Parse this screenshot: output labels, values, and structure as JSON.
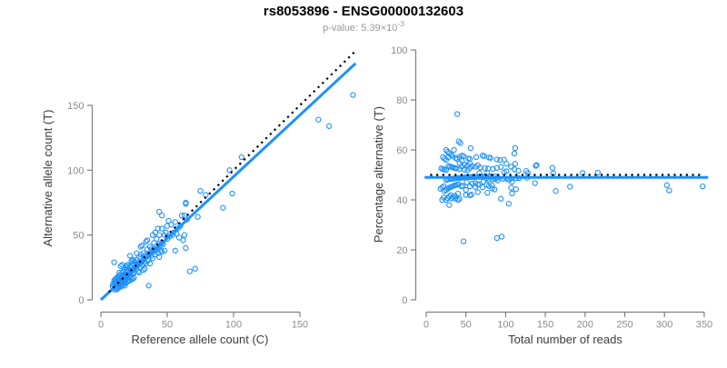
{
  "header": {
    "title": "rs8053896 - ENSG00000132603",
    "subtitle_prefix": "p-value: 5.39",
    "subtitle_times": "×10",
    "subtitle_exponent": "-3"
  },
  "colors": {
    "points": "#1E90FF",
    "fit_line": "#1E90FF",
    "reference_line": "#000000",
    "axis": "#808080",
    "tick_text": "#8c8c8c",
    "axis_title_text": "#3c3c3c"
  },
  "chart_data": [
    {
      "type": "scatter",
      "title": "",
      "xlabel": "Reference allele count (C)",
      "ylabel": "Alternative allele count (T)",
      "xticks": [
        0,
        50,
        100,
        150
      ],
      "yticks": [
        0,
        50,
        100,
        150
      ],
      "xlim": [
        0,
        195
      ],
      "ylim": [
        0,
        195
      ],
      "grid": false,
      "legend": "none",
      "points_ct": [
        [
          9,
          10
        ],
        [
          9,
          12
        ],
        [
          10,
          8
        ],
        [
          10,
          11
        ],
        [
          10,
          13
        ],
        [
          10,
          15
        ],
        [
          10,
          29
        ],
        [
          11,
          9
        ],
        [
          11,
          12
        ],
        [
          11,
          14
        ],
        [
          11,
          16
        ],
        [
          12,
          8
        ],
        [
          12,
          10
        ],
        [
          12,
          13
        ],
        [
          12,
          16
        ],
        [
          12,
          17
        ],
        [
          13,
          9
        ],
        [
          13,
          10
        ],
        [
          13,
          12
        ],
        [
          13,
          15
        ],
        [
          13,
          18
        ],
        [
          14,
          11
        ],
        [
          14,
          13
        ],
        [
          14,
          16
        ],
        [
          14,
          19
        ],
        [
          14,
          21
        ],
        [
          15,
          10
        ],
        [
          15,
          12
        ],
        [
          15,
          14
        ],
        [
          15,
          17
        ],
        [
          15,
          26
        ],
        [
          16,
          11
        ],
        [
          16,
          13
        ],
        [
          16,
          15
        ],
        [
          16,
          18
        ],
        [
          16,
          21
        ],
        [
          16,
          27
        ],
        [
          17,
          12
        ],
        [
          17,
          14
        ],
        [
          17,
          16
        ],
        [
          17,
          19
        ],
        [
          17,
          22
        ],
        [
          18,
          11
        ],
        [
          18,
          13
        ],
        [
          18,
          15
        ],
        [
          18,
          17
        ],
        [
          18,
          20
        ],
        [
          18,
          24
        ],
        [
          19,
          13
        ],
        [
          19,
          16
        ],
        [
          19,
          18
        ],
        [
          19,
          23
        ],
        [
          19,
          26
        ],
        [
          20,
          14
        ],
        [
          20,
          17
        ],
        [
          20,
          19
        ],
        [
          20,
          22
        ],
        [
          20,
          25
        ],
        [
          20,
          27
        ],
        [
          21,
          15
        ],
        [
          21,
          18
        ],
        [
          21,
          20
        ],
        [
          21,
          24
        ],
        [
          22,
          15
        ],
        [
          22,
          19
        ],
        [
          22,
          21
        ],
        [
          22,
          26
        ],
        [
          22,
          34
        ],
        [
          23,
          17
        ],
        [
          23,
          22
        ],
        [
          23,
          25
        ],
        [
          23,
          30
        ],
        [
          24,
          16
        ],
        [
          24,
          20
        ],
        [
          24,
          23
        ],
        [
          24,
          28
        ],
        [
          24,
          31
        ],
        [
          25,
          17
        ],
        [
          25,
          21
        ],
        [
          25,
          24
        ],
        [
          25,
          27
        ],
        [
          25,
          30
        ],
        [
          26,
          25
        ],
        [
          26,
          29
        ],
        [
          27,
          24
        ],
        [
          27,
          31
        ],
        [
          27,
          36
        ],
        [
          28,
          22
        ],
        [
          28,
          27
        ],
        [
          29,
          21
        ],
        [
          29,
          28
        ],
        [
          29,
          33
        ],
        [
          30,
          25
        ],
        [
          30,
          29
        ],
        [
          30,
          35
        ],
        [
          30,
          41
        ],
        [
          31,
          27
        ],
        [
          31,
          30
        ],
        [
          31,
          42
        ],
        [
          32,
          23
        ],
        [
          32,
          31
        ],
        [
          32,
          36
        ],
        [
          33,
          24
        ],
        [
          33,
          29
        ],
        [
          33,
          34
        ],
        [
          34,
          28
        ],
        [
          34,
          33
        ],
        [
          34,
          45
        ],
        [
          35,
          30
        ],
        [
          35,
          34
        ],
        [
          35,
          39
        ],
        [
          35,
          46
        ],
        [
          36,
          11
        ],
        [
          36,
          31
        ],
        [
          36,
          35
        ],
        [
          37,
          28
        ],
        [
          37,
          36
        ],
        [
          37,
          41
        ],
        [
          38,
          34
        ],
        [
          38,
          39
        ],
        [
          39,
          32
        ],
        [
          39,
          37
        ],
        [
          39,
          50
        ],
        [
          40,
          39
        ],
        [
          40,
          44
        ],
        [
          41,
          35
        ],
        [
          41,
          38
        ],
        [
          41,
          52
        ],
        [
          42,
          41
        ],
        [
          42,
          47
        ],
        [
          43,
          36
        ],
        [
          43,
          40
        ],
        [
          43,
          55
        ],
        [
          44,
          33
        ],
        [
          44,
          43
        ],
        [
          44,
          50
        ],
        [
          44,
          68
        ],
        [
          45,
          38
        ],
        [
          45,
          42
        ],
        [
          46,
          37
        ],
        [
          46,
          44
        ],
        [
          46,
          55
        ],
        [
          46,
          65
        ],
        [
          47,
          43
        ],
        [
          48,
          38
        ],
        [
          48,
          50
        ],
        [
          49,
          52
        ],
        [
          50,
          47
        ],
        [
          50,
          57
        ],
        [
          51,
          61
        ],
        [
          52,
          49
        ],
        [
          53,
          58
        ],
        [
          54,
          50
        ],
        [
          55,
          52
        ],
        [
          56,
          38
        ],
        [
          56,
          60
        ],
        [
          57,
          51
        ],
        [
          58,
          55
        ],
        [
          59,
          48
        ],
        [
          60,
          57
        ],
        [
          61,
          65
        ],
        [
          62,
          46
        ],
        [
          63,
          50
        ],
        [
          63,
          65
        ],
        [
          64,
          40
        ],
        [
          64,
          74
        ],
        [
          64,
          75
        ],
        [
          65,
          62
        ],
        [
          67,
          22
        ],
        [
          71,
          24
        ],
        [
          73,
          64
        ],
        [
          75,
          84
        ],
        [
          79,
          81
        ],
        [
          92,
          71
        ],
        [
          97,
          100
        ],
        [
          99,
          82
        ],
        [
          106,
          110
        ],
        [
          164,
          139
        ],
        [
          172,
          134
        ],
        [
          190,
          158
        ]
      ],
      "lines": [
        {
          "name": "identity-dotted",
          "style": "dotted",
          "color": "#000000",
          "slope": 1,
          "intercept": 0,
          "x_range": [
            6,
            192
          ]
        },
        {
          "name": "fit-solid",
          "style": "solid",
          "color": "#1E90FF",
          "slope": 0.95,
          "intercept": 0,
          "x_range": [
            0,
            192
          ]
        }
      ]
    },
    {
      "type": "scatter",
      "title": "",
      "xlabel": "Total number of reads",
      "ylabel": "Percentage alternative (T)",
      "xticks": [
        0,
        50,
        100,
        150,
        200,
        250,
        300,
        350
      ],
      "yticks": [
        0,
        20,
        40,
        60,
        80,
        100
      ],
      "xlim": [
        0,
        355
      ],
      "ylim": [
        0,
        100
      ],
      "grid": false,
      "legend": "none",
      "points_derived": {
        "source": "chart_data[0].points_ct",
        "x": "C+T",
        "y": "100*T/(C+T)"
      },
      "lines": [
        {
          "name": "expected-50-dotted",
          "style": "dotted",
          "color": "#000000",
          "y": 50,
          "x_range": [
            5,
            347
          ]
        },
        {
          "name": "fit-solid",
          "style": "solid",
          "color": "#1E90FF",
          "y": 49,
          "x_range": [
            -2,
            355
          ]
        }
      ]
    }
  ]
}
